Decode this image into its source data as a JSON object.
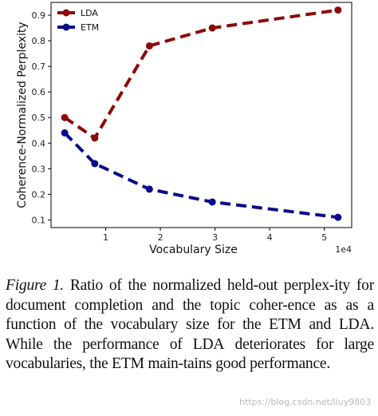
{
  "chart_data": {
    "type": "line",
    "x_multiplier_label": "1e4",
    "xlabel": "Vocabulary Size",
    "ylabel": "Coherence-Normalized Perplexity",
    "xlim": [
      0,
      5.5
    ],
    "ylim": [
      0.07,
      0.95
    ],
    "xticks": [
      1,
      2,
      3,
      4,
      5
    ],
    "yticks": [
      0.1,
      0.2,
      0.3,
      0.4,
      0.5,
      0.6,
      0.7,
      0.8,
      0.9
    ],
    "legend_position": "top-left",
    "grid": false,
    "line_style": "dashed",
    "series": [
      {
        "name": "LDA",
        "color": "#8b0a0a",
        "x": [
          0.25,
          0.8,
          1.8,
          2.95,
          5.25
        ],
        "y": [
          0.5,
          0.42,
          0.78,
          0.85,
          0.92
        ]
      },
      {
        "name": "ETM",
        "color": "#0a0a8b",
        "x": [
          0.25,
          0.8,
          1.8,
          2.95,
          5.25
        ],
        "y": [
          0.44,
          0.32,
          0.22,
          0.17,
          0.11
        ]
      }
    ]
  },
  "caption": {
    "lead": "Figure 1.",
    "body_1": " Ratio of the normalized held-out perplex-ity for document completion and the topic coher-ence as as a function of the vocabulary size for the ETM and ",
    "lda": "LDA",
    "body_2": ". While the performance of ",
    "lda2": "LDA",
    "body_3": " deteriorates for large vocabularies, the ETM main-tains good performance."
  },
  "watermark": "https://blog.csdn.net/liuy9803"
}
